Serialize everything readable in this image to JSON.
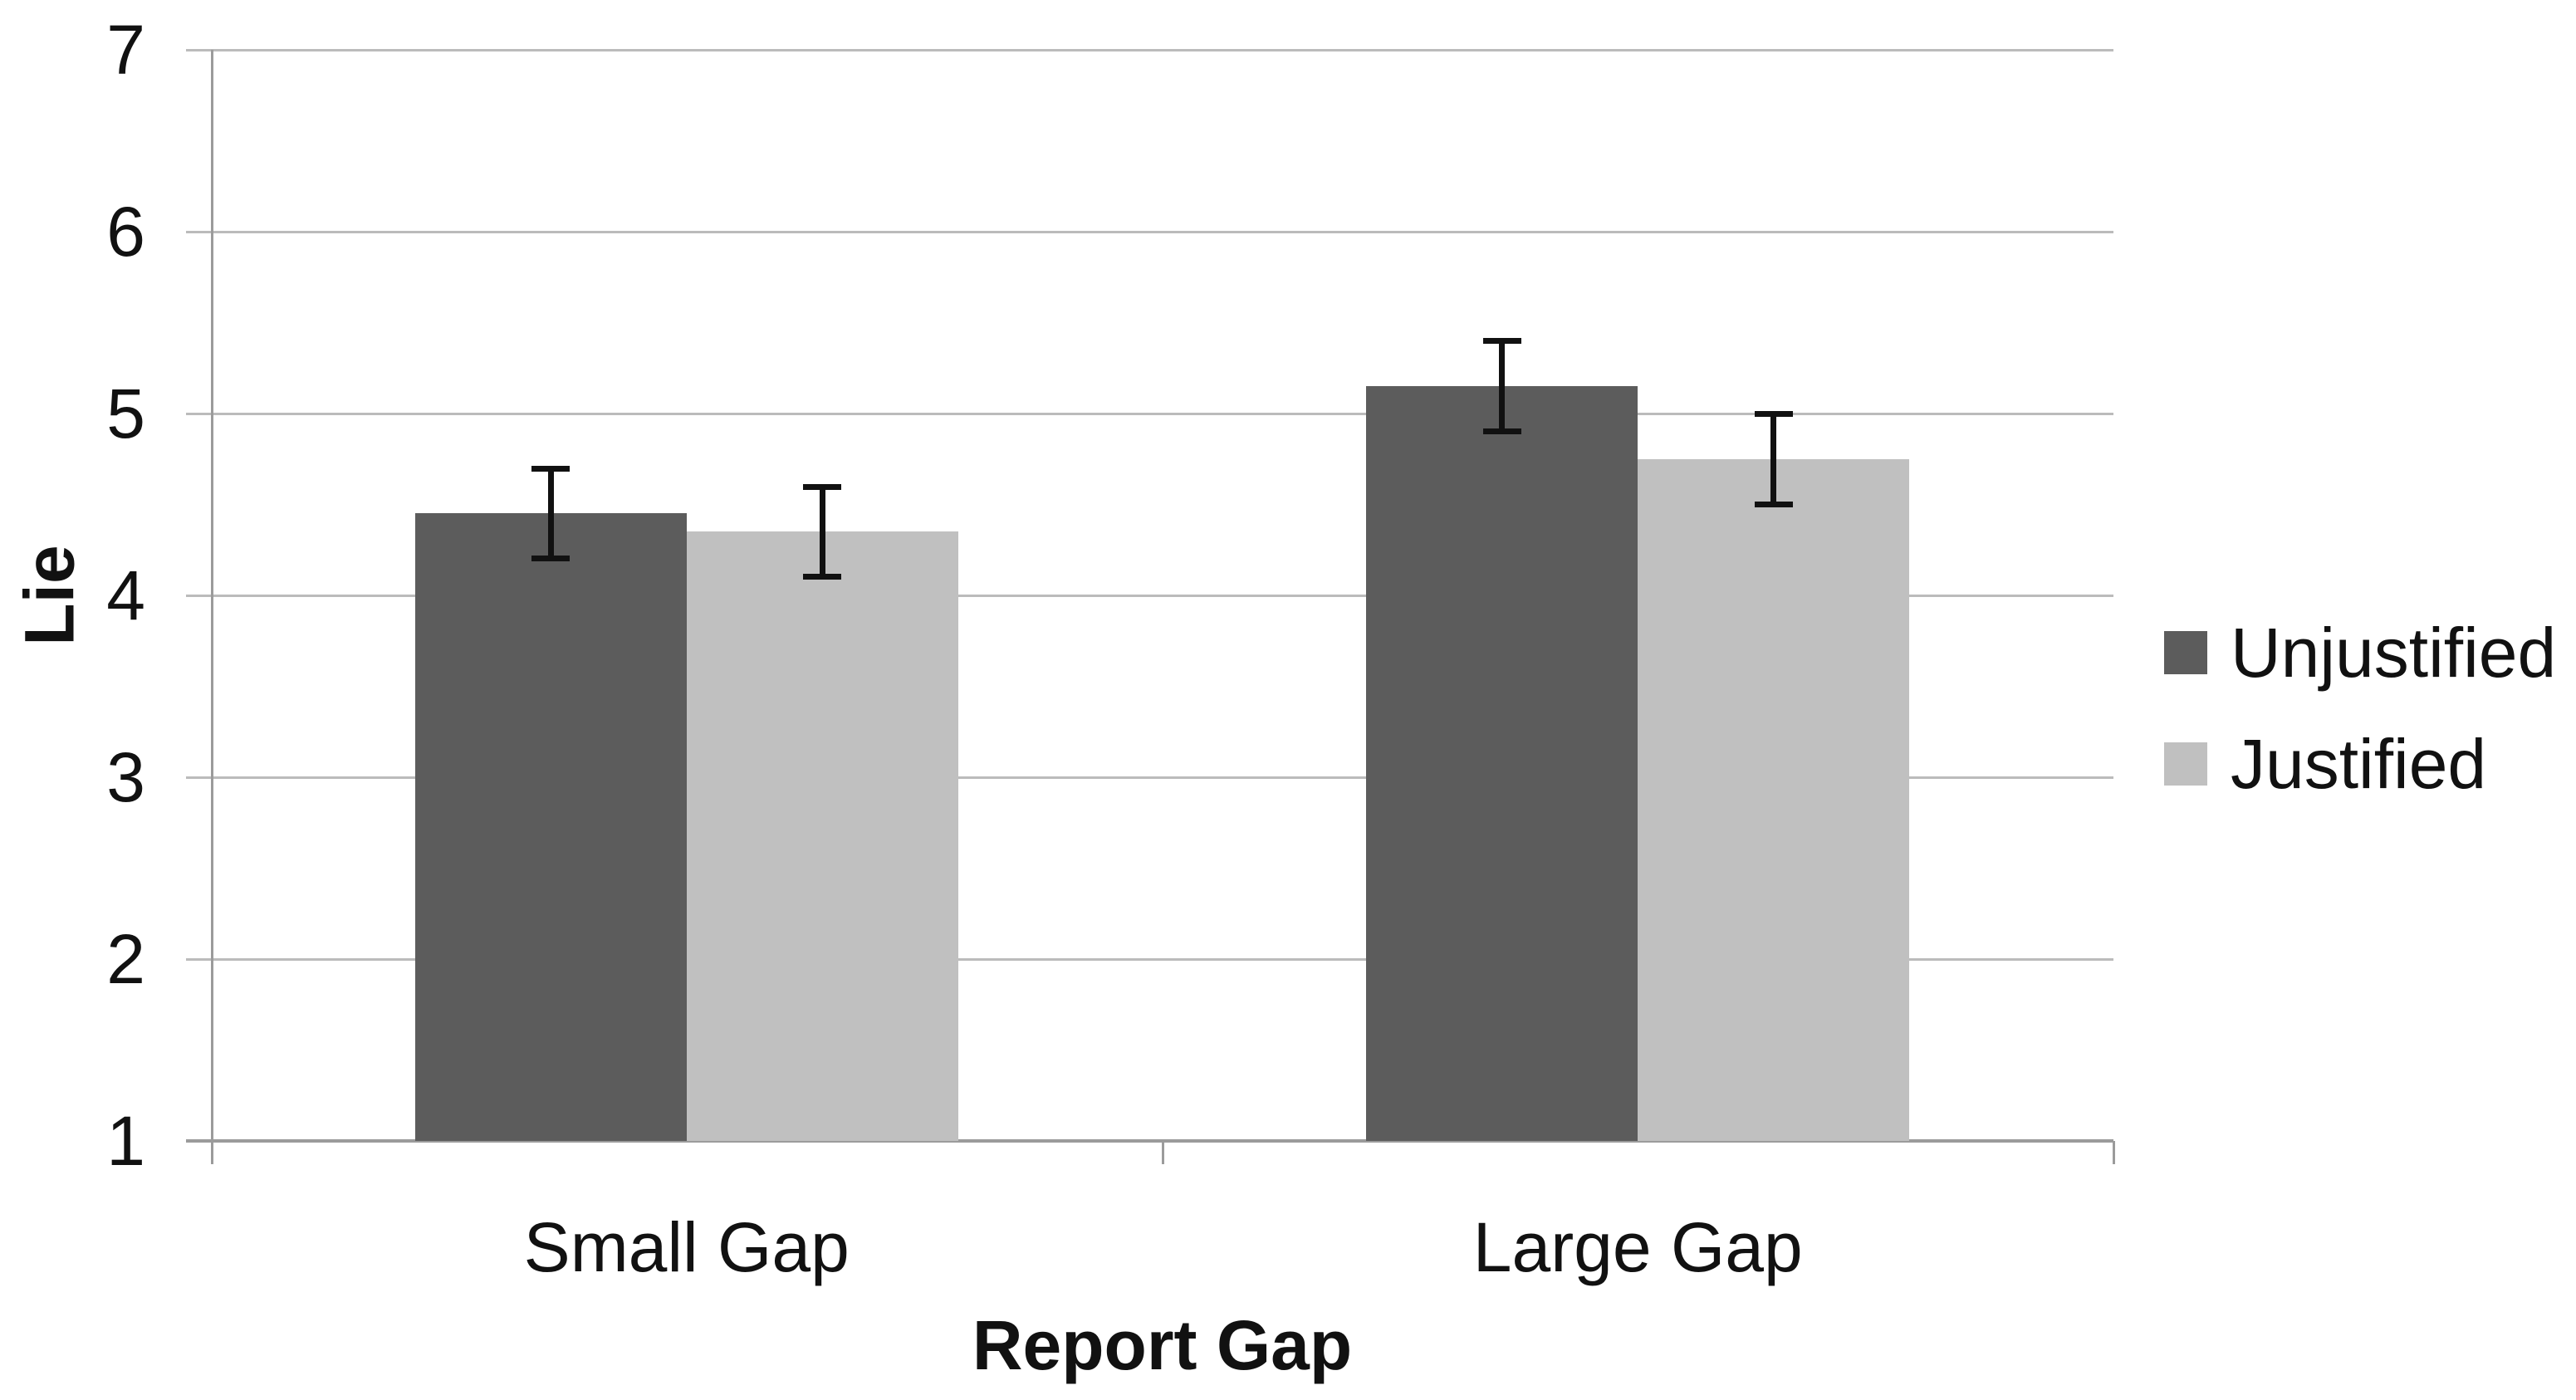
{
  "chart_data": {
    "type": "bar",
    "title": "",
    "categories": [
      "Small Gap",
      "Large Gap"
    ],
    "series": [
      {
        "name": "Unjustified",
        "color": "#5c5c5c",
        "values": [
          4.45,
          5.15
        ],
        "errors": [
          0.25,
          0.25
        ]
      },
      {
        "name": "Justified",
        "color": "#c0c0c0",
        "values": [
          4.35,
          4.75
        ],
        "errors": [
          0.25,
          0.25
        ]
      }
    ],
    "xlabel": "Report Gap",
    "ylabel": "Lie",
    "ylim": [
      1,
      7
    ],
    "yticks": [
      7,
      6,
      5,
      4,
      3,
      2,
      1
    ],
    "grid": "horizontal",
    "legend_position": "right",
    "error_bars": true,
    "error_bar_color": "#111111",
    "axis_color": "#9b9b9b",
    "gridline_color": "#bbbbbb",
    "background_color": "#ffffff"
  }
}
